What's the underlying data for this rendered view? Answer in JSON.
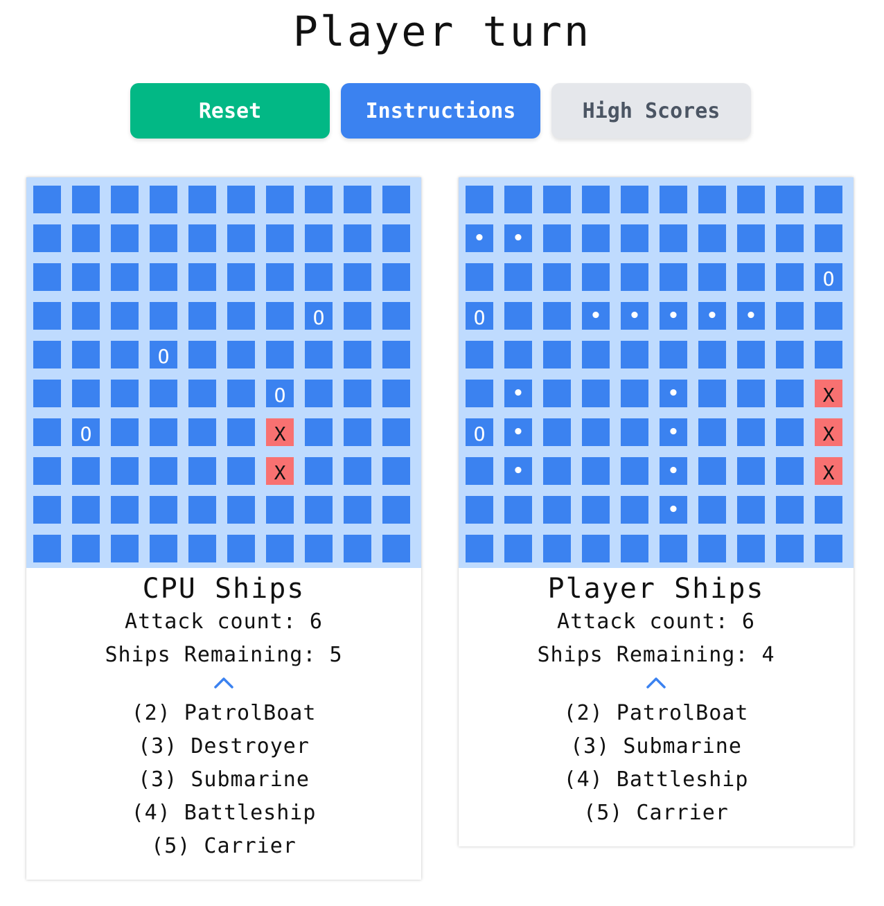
{
  "header": {
    "title": "Player turn"
  },
  "buttons": {
    "reset_label": "Reset",
    "instructions_label": "Instructions",
    "high_scores_label": "High Scores"
  },
  "colors": {
    "reset": "#02b885",
    "instructions": "#3b82f0",
    "high_scores": "#e5e7eb",
    "board_bg": "#bfdbfe",
    "cell": "#3b82f0",
    "hit_cell": "#f87171"
  },
  "cpu": {
    "title": "CPU Ships",
    "attack_count_label": "Attack count: 6",
    "ships_remaining_label": "Ships Remaining: 5",
    "toggle_icon": "chevron-up-icon",
    "ships": [
      "(2) PatrolBoat",
      "(3) Destroyer",
      "(3) Submarine",
      "(4) Battleship",
      "(5) Carrier"
    ],
    "board": [
      [
        "",
        "",
        "",
        "",
        "",
        "",
        "",
        "",
        "",
        ""
      ],
      [
        "",
        "",
        "",
        "",
        "",
        "",
        "",
        "",
        "",
        ""
      ],
      [
        "",
        "",
        "",
        "",
        "",
        "",
        "",
        "",
        "",
        ""
      ],
      [
        "",
        "",
        "",
        "",
        "",
        "",
        "",
        "O",
        "",
        ""
      ],
      [
        "",
        "",
        "",
        "O",
        "",
        "",
        "",
        "",
        "",
        ""
      ],
      [
        "",
        "",
        "",
        "",
        "",
        "",
        "O",
        "",
        "",
        ""
      ],
      [
        "",
        "O",
        "",
        "",
        "",
        "",
        "X",
        "",
        "",
        ""
      ],
      [
        "",
        "",
        "",
        "",
        "",
        "",
        "X",
        "",
        "",
        ""
      ],
      [
        "",
        "",
        "",
        "",
        "",
        "",
        "",
        "",
        "",
        ""
      ],
      [
        "",
        "",
        "",
        "",
        "",
        "",
        "",
        "",
        "",
        ""
      ]
    ]
  },
  "player": {
    "title": "Player Ships",
    "attack_count_label": "Attack count: 6",
    "ships_remaining_label": "Ships Remaining: 4",
    "toggle_icon": "chevron-up-icon",
    "ships": [
      "(2) PatrolBoat",
      "(3) Submarine",
      "(4) Battleship",
      "(5) Carrier"
    ],
    "board": [
      [
        "",
        "",
        "",
        "",
        "",
        "",
        "",
        "",
        "",
        ""
      ],
      [
        "•",
        "•",
        "",
        "",
        "",
        "",
        "",
        "",
        "",
        ""
      ],
      [
        "",
        "",
        "",
        "",
        "",
        "",
        "",
        "",
        "",
        "O"
      ],
      [
        "O",
        "",
        "",
        "•",
        "•",
        "•",
        "•",
        "•",
        "",
        ""
      ],
      [
        "",
        "",
        "",
        "",
        "",
        "",
        "",
        "",
        "",
        ""
      ],
      [
        "",
        "•",
        "",
        "",
        "",
        "•",
        "",
        "",
        "",
        "X"
      ],
      [
        "O",
        "•",
        "",
        "",
        "",
        "•",
        "",
        "",
        "",
        "X"
      ],
      [
        "",
        "•",
        "",
        "",
        "",
        "•",
        "",
        "",
        "",
        "X"
      ],
      [
        "",
        "",
        "",
        "",
        "",
        "•",
        "",
        "",
        "",
        ""
      ],
      [
        "",
        "",
        "",
        "",
        "",
        "",
        "",
        "",
        "",
        ""
      ]
    ]
  }
}
